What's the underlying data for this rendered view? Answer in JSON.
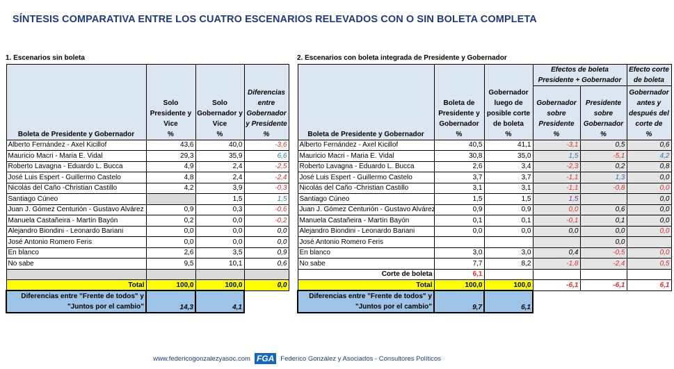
{
  "title": "SÍNTESIS COMPARATIVA ENTRE LOS CUATRO ESCENARIOS RELEVADOS CON O SIN BOLETA COMPLETA",
  "colors": {
    "red": "#e0302a",
    "blue": "#2e6fc7",
    "purple": "#7030a0",
    "total_bg": "#ffff00",
    "diff_bg": "#9dc3e6",
    "header_bg": "#dce6f1"
  },
  "left": {
    "section": "1. Escenarios sin boleta",
    "headers": [
      "Boleta de Presidente y Gobernador",
      "Solo Presidente y Vice",
      "Solo Gobernador y Vice",
      "Diferencias entre Gobernador y Presidente"
    ],
    "unit": "%",
    "rows": [
      {
        "name": "Alberto Fernández - Axel Kicillof",
        "c1": "43,6",
        "c2": "40,0",
        "c3": {
          "v": "-3,6",
          "c": "r"
        }
      },
      {
        "name": "Mauricio Macri - Maria E. Vidal",
        "c1": "29,3",
        "c2": "35,9",
        "c3": {
          "v": "6,6",
          "c": "b"
        }
      },
      {
        "name": "Roberto Lavagna - Eduardo L. Bucca",
        "c1": "4,9",
        "c2": "2,4",
        "c3": {
          "v": "-2,5",
          "c": "r"
        }
      },
      {
        "name": "José Luis Espert - Guillermo Castelo",
        "c1": "4,8",
        "c2": "2,4",
        "c3": {
          "v": "-2,4",
          "c": "r"
        }
      },
      {
        "name": "Nicolás del Caño -Christian Castillo",
        "c1": "4,2",
        "c2": "3,9",
        "c3": {
          "v": "-0,3",
          "c": "r"
        }
      },
      {
        "name": "Santiago Cúneo",
        "c1": "",
        "c2": "1,5",
        "c3": {
          "v": "1,5",
          "c": "b"
        }
      },
      {
        "name": "Juan J. Gómez Centurión - Gustavo Alvárez",
        "c1": "0,9",
        "c2": "0,3",
        "c3": {
          "v": "-0,6",
          "c": "r"
        }
      },
      {
        "name": "Manuela Castañeira - Martín Bayón",
        "c1": "0,2",
        "c2": "0,0",
        "c3": {
          "v": "-0,2",
          "c": "r"
        }
      },
      {
        "name": "Alejandro Biondini - Leonardo Bariani",
        "c1": "0,0",
        "c2": "0,0",
        "c3": {
          "v": "0,0",
          "c": "k"
        }
      },
      {
        "name": "José Antonio Romero Feris",
        "c1": "0,0",
        "c2": "0,0",
        "c3": {
          "v": "0,0",
          "c": "k"
        }
      },
      {
        "name": "En blanco",
        "c1": "2,6",
        "c2": "3,5",
        "c3": {
          "v": "0,9",
          "c": "k"
        }
      },
      {
        "name": "No sabe",
        "c1": "9,5",
        "c2": "10,1",
        "c3": {
          "v": "0,6",
          "c": "k"
        }
      }
    ],
    "total": {
      "label": "Total",
      "c1": "100,0",
      "c2": "100,0",
      "c3": "0,0"
    },
    "diff": {
      "label": "Diferencias entre \"Frente de todos\" y \"Juntos por el cambio\"",
      "c1": "14,3",
      "c2": "4,1"
    }
  },
  "right": {
    "section": "2. Escenarios con boleta integrada de Presidente y Gobernador",
    "headers": [
      "Boleta de Presidente y Gobernador",
      "Boleta de Presidente y Gobernador",
      "Gobernador luego de posible corte de boleta",
      "Gobernador sobre Presidente",
      "Presidente sobre Gobernador",
      "Gobernador antes y después del corte de"
    ],
    "group1": "Efectos de boleta Presidente + Gobernador",
    "group2": "Efecto corte de boleta",
    "unit": "%",
    "rows": [
      {
        "name": "Alberto Fernández - Axel Kicillof",
        "c1": "40,5",
        "c2": "41,1",
        "c3": {
          "v": "-3,1",
          "c": "r"
        },
        "c4": {
          "v": "0,5",
          "c": "k"
        },
        "c5": {
          "v": "0,6",
          "c": "k"
        }
      },
      {
        "name": "Mauricio Macri - Maria E. Vidal",
        "c1": "30,8",
        "c2": "35,0",
        "c3": {
          "v": "1,5",
          "c": "b"
        },
        "c4": {
          "v": "-5,1",
          "c": "r"
        },
        "c5": {
          "v": "4,2",
          "c": "b"
        }
      },
      {
        "name": "Roberto Lavagna - Eduardo L. Bucca",
        "c1": "2,6",
        "c2": "3,4",
        "c3": {
          "v": "-2,3",
          "c": "r"
        },
        "c4": {
          "v": "0,2",
          "c": "k"
        },
        "c5": {
          "v": "0,8",
          "c": "k"
        }
      },
      {
        "name": "José Luis Espert - Guillermo Castelo",
        "c1": "3,7",
        "c2": "3,7",
        "c3": {
          "v": "-1,1",
          "c": "r"
        },
        "c4": {
          "v": "1,3",
          "c": "b"
        },
        "c5": {
          "v": "0,0",
          "c": "k"
        }
      },
      {
        "name": "Nicolás del Caño -Christian Castillo",
        "c1": "3,1",
        "c2": "3,1",
        "c3": {
          "v": "-1,1",
          "c": "r"
        },
        "c4": {
          "v": "-0,8",
          "c": "r"
        },
        "c5": {
          "v": "0,0",
          "c": "r"
        }
      },
      {
        "name": "Santiago Cúneo",
        "c1": "1,5",
        "c2": "1,5",
        "c3": {
          "v": "1,5",
          "c": "p"
        },
        "c4": {
          "v": "",
          "c": "k"
        },
        "c5": {
          "v": "0,0",
          "c": "k"
        }
      },
      {
        "name": "Juan J. Gómez Centurión - Gustavo Alvárez",
        "c1": "0,9",
        "c2": "0,9",
        "c3": {
          "v": "0,0",
          "c": "r"
        },
        "c4": {
          "v": "0,6",
          "c": "k"
        },
        "c5": {
          "v": "0,0",
          "c": "k"
        }
      },
      {
        "name": "Manuela Castañeira - Martín Bayón",
        "c1": "0,1",
        "c2": "0,1",
        "c3": {
          "v": "-0,1",
          "c": "r"
        },
        "c4": {
          "v": "0,1",
          "c": "k"
        },
        "c5": {
          "v": "0,0",
          "c": "k"
        }
      },
      {
        "name": "Alejandro Biondini - Leonardo Bariani",
        "c1": "0,0",
        "c2": "0,0",
        "c3": {
          "v": "0,0",
          "c": "k"
        },
        "c4": {
          "v": "0,0",
          "c": "k"
        },
        "c5": {
          "v": "0,0",
          "c": "r"
        }
      },
      {
        "name": "José Antonio Romero Feris",
        "c1": "",
        "c2": "",
        "c3": {
          "v": "",
          "c": "k"
        },
        "c4": {
          "v": "0,0",
          "c": "k"
        },
        "c5": {
          "v": "",
          "c": "k"
        }
      },
      {
        "name": "En blanco",
        "c1": "3,0",
        "c2": "3,0",
        "c3": {
          "v": "0,4",
          "c": "k"
        },
        "c4": {
          "v": "-0,5",
          "c": "r"
        },
        "c5": {
          "v": "0,0",
          "c": "r"
        }
      },
      {
        "name": "No sabe",
        "c1": "7,7",
        "c2": "8,2",
        "c3": {
          "v": "-1,8",
          "c": "r"
        },
        "c4": {
          "v": "-2,4",
          "c": "r"
        },
        "c5": {
          "v": "0,5",
          "c": "r"
        }
      }
    ],
    "corte": {
      "label": "Corte de boleta",
      "c1": "6,1"
    },
    "total": {
      "label": "Total",
      "c1": "100,0",
      "c2": "100,0",
      "c3": "-6,1",
      "c4": "-6,1",
      "c5": "6,1"
    },
    "diff": {
      "label": "Diferencias entre \"Frente de todos\" y \"Juntos por el cambio\"",
      "c1": "9,7",
      "c2": "6,1"
    }
  },
  "footer": {
    "url": "www.federicogonzalezyasoc.com",
    "logo": "FGA",
    "company": "Federico González y Asociados - Consultores Políticos"
  }
}
